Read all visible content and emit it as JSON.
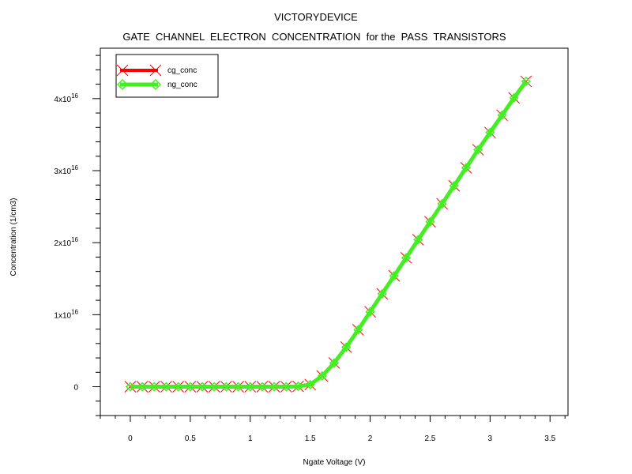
{
  "chart_data": {
    "type": "line",
    "title": "VICTORYDEVICE",
    "subtitle": "GATE  CHANNEL  ELECTRON  CONCENTRATION  for the  PASS  TRANSISTORS",
    "xlabel": "Ngate Voltage (V)",
    "ylabel": "Concentration (1/cm3)",
    "xlim": [
      -0.25,
      3.65
    ],
    "ylim": [
      -4000000000000000.0,
      4.7e+16
    ],
    "x_ticks": [
      0,
      0.5,
      1,
      1.5,
      2,
      2.5,
      3,
      3.5
    ],
    "x_tick_labels": [
      "0",
      "0.5",
      "1",
      "1.5",
      "2",
      "2.5",
      "3",
      "3.5"
    ],
    "y_ticks": [
      0,
      1e+16,
      2e+16,
      3e+16,
      4e+16
    ],
    "y_tick_labels": [
      {
        "mantissa": "0",
        "base": "",
        "exp": ""
      },
      {
        "mantissa": "1",
        "base": "x10",
        "exp": "16"
      },
      {
        "mantissa": "2",
        "base": "x10",
        "exp": "16"
      },
      {
        "mantissa": "3",
        "base": "x10",
        "exp": "16"
      },
      {
        "mantissa": "4",
        "base": "x10",
        "exp": "16"
      }
    ],
    "grid": false,
    "legend_position": "top-left",
    "x": [
      0,
      0.1,
      0.2,
      0.3,
      0.4,
      0.5,
      0.6,
      0.7,
      0.8,
      0.9,
      1.0,
      1.1,
      1.2,
      1.3,
      1.4,
      1.5,
      1.6,
      1.7,
      1.8,
      1.9,
      2.0,
      2.1,
      2.2,
      2.3,
      2.4,
      2.5,
      2.6,
      2.7,
      2.8,
      2.9,
      3.0,
      3.1,
      3.2,
      3.3
    ],
    "series": [
      {
        "name": "cg_conc",
        "color": "#ff0000",
        "marker": "x-cross",
        "values": [
          0,
          0,
          0,
          0,
          0,
          0,
          0,
          0,
          0,
          0,
          0,
          0,
          0,
          0,
          50000000000000.0,
          300000000000000.0,
          1500000000000000.0,
          3300000000000000.0,
          5500000000000000.0,
          7900000000000000.0,
          1.04e+16,
          1.29e+16,
          1.54e+16,
          1.79e+16,
          2.04e+16,
          2.29e+16,
          2.54e+16,
          2.79e+16,
          3.04e+16,
          3.29e+16,
          3.53e+16,
          3.77e+16,
          4.01e+16,
          4.24e+16
        ]
      },
      {
        "name": "ng_conc",
        "color": "#44ee22",
        "marker": "diamond",
        "values": [
          0,
          0,
          0,
          0,
          0,
          0,
          0,
          0,
          0,
          0,
          0,
          0,
          0,
          0,
          50000000000000.0,
          300000000000000.0,
          1500000000000000.0,
          3300000000000000.0,
          5500000000000000.0,
          7900000000000000.0,
          1.04e+16,
          1.29e+16,
          1.54e+16,
          1.79e+16,
          2.04e+16,
          2.29e+16,
          2.54e+16,
          2.79e+16,
          3.04e+16,
          3.29e+16,
          3.53e+16,
          3.77e+16,
          4.01e+16,
          4.24e+16
        ]
      }
    ]
  }
}
